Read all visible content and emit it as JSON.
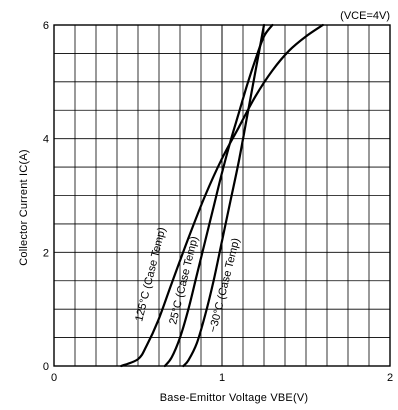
{
  "chart_data": {
    "type": "line",
    "xlabel": "Base-Emittor Voltage VBE(V)",
    "ylabel": "Collector Current IC(A)",
    "condition": "(VCE=4V)",
    "xlim": [
      0,
      2
    ],
    "ylim": [
      0,
      6
    ],
    "x_ticks": [
      "0",
      "1",
      "2"
    ],
    "y_ticks": [
      "0",
      "2",
      "4",
      "6"
    ],
    "grid": true,
    "series": [
      {
        "name": "125°C (Case Temp)",
        "x": [
          0.4,
          0.5,
          0.55,
          0.62,
          0.7,
          0.8,
          0.9,
          1.0,
          1.1,
          1.2,
          1.3,
          1.4,
          1.5,
          1.6
        ],
        "y": [
          0.0,
          0.12,
          0.35,
          0.8,
          1.45,
          2.25,
          3.0,
          3.65,
          4.2,
          4.75,
          5.2,
          5.55,
          5.8,
          6.0
        ]
      },
      {
        "name": "25°C (Case Temp)",
        "x": [
          0.66,
          0.7,
          0.75,
          0.8,
          0.85,
          0.9,
          0.95,
          1.0,
          1.05,
          1.1,
          1.15,
          1.2,
          1.25,
          1.3
        ],
        "y": [
          0.0,
          0.15,
          0.5,
          1.0,
          1.6,
          2.2,
          2.8,
          3.4,
          3.95,
          4.45,
          4.95,
          5.4,
          5.8,
          6.0
        ]
      },
      {
        "name": "−30°C (Case Temp)",
        "x": [
          0.77,
          0.8,
          0.85,
          0.9,
          0.95,
          1.0,
          1.05,
          1.1,
          1.15,
          1.2,
          1.25
        ],
        "y": [
          0.0,
          0.1,
          0.4,
          0.9,
          1.5,
          2.2,
          2.9,
          3.6,
          4.4,
          5.2,
          6.0
        ]
      }
    ]
  }
}
